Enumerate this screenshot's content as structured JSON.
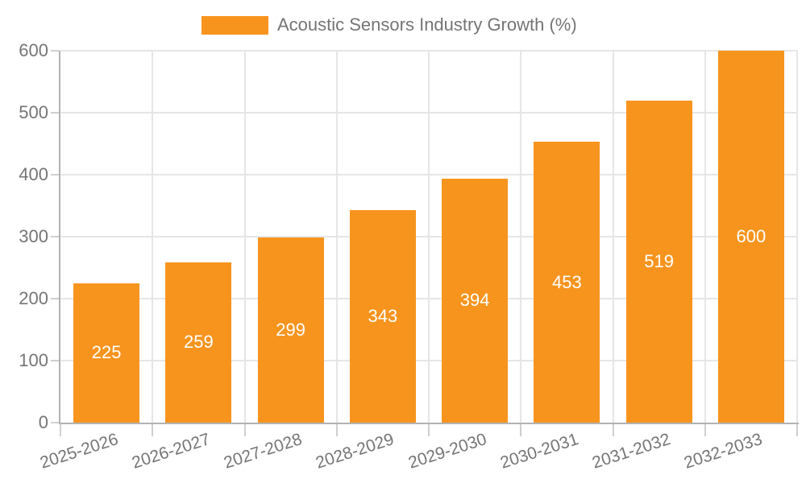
{
  "colors": {
    "bar": "#F7941E",
    "text": "#757575",
    "grid": "#E6E6E6",
    "axis": "#B3B3B3",
    "value_label": "#FFFFFF",
    "background": "#FFFFFF"
  },
  "legend": {
    "label": "Acoustic Sensors Industry Growth (%)",
    "position": "top"
  },
  "chart_data": {
    "type": "bar",
    "title": "Acoustic Sensors Industry Growth (%)",
    "categories": [
      "2025-2026",
      "2026-2027",
      "2027-2028",
      "2028-2029",
      "2029-2030",
      "2030-2031",
      "2031-2032",
      "2032-2033"
    ],
    "values": [
      225,
      259,
      299,
      343,
      394,
      453,
      519,
      600
    ],
    "series": [
      {
        "name": "Acoustic Sensors Industry Growth (%)",
        "values": [
          225,
          259,
          299,
          343,
          394,
          453,
          519,
          600
        ]
      }
    ],
    "xlabel": "",
    "ylabel": "",
    "ylim": [
      0,
      600
    ],
    "yticks": [
      0,
      100,
      200,
      300,
      400,
      500,
      600
    ],
    "grid": true,
    "legend_position": "top",
    "bar_color": "#F7941E",
    "value_label_color": "#FFFFFF"
  }
}
